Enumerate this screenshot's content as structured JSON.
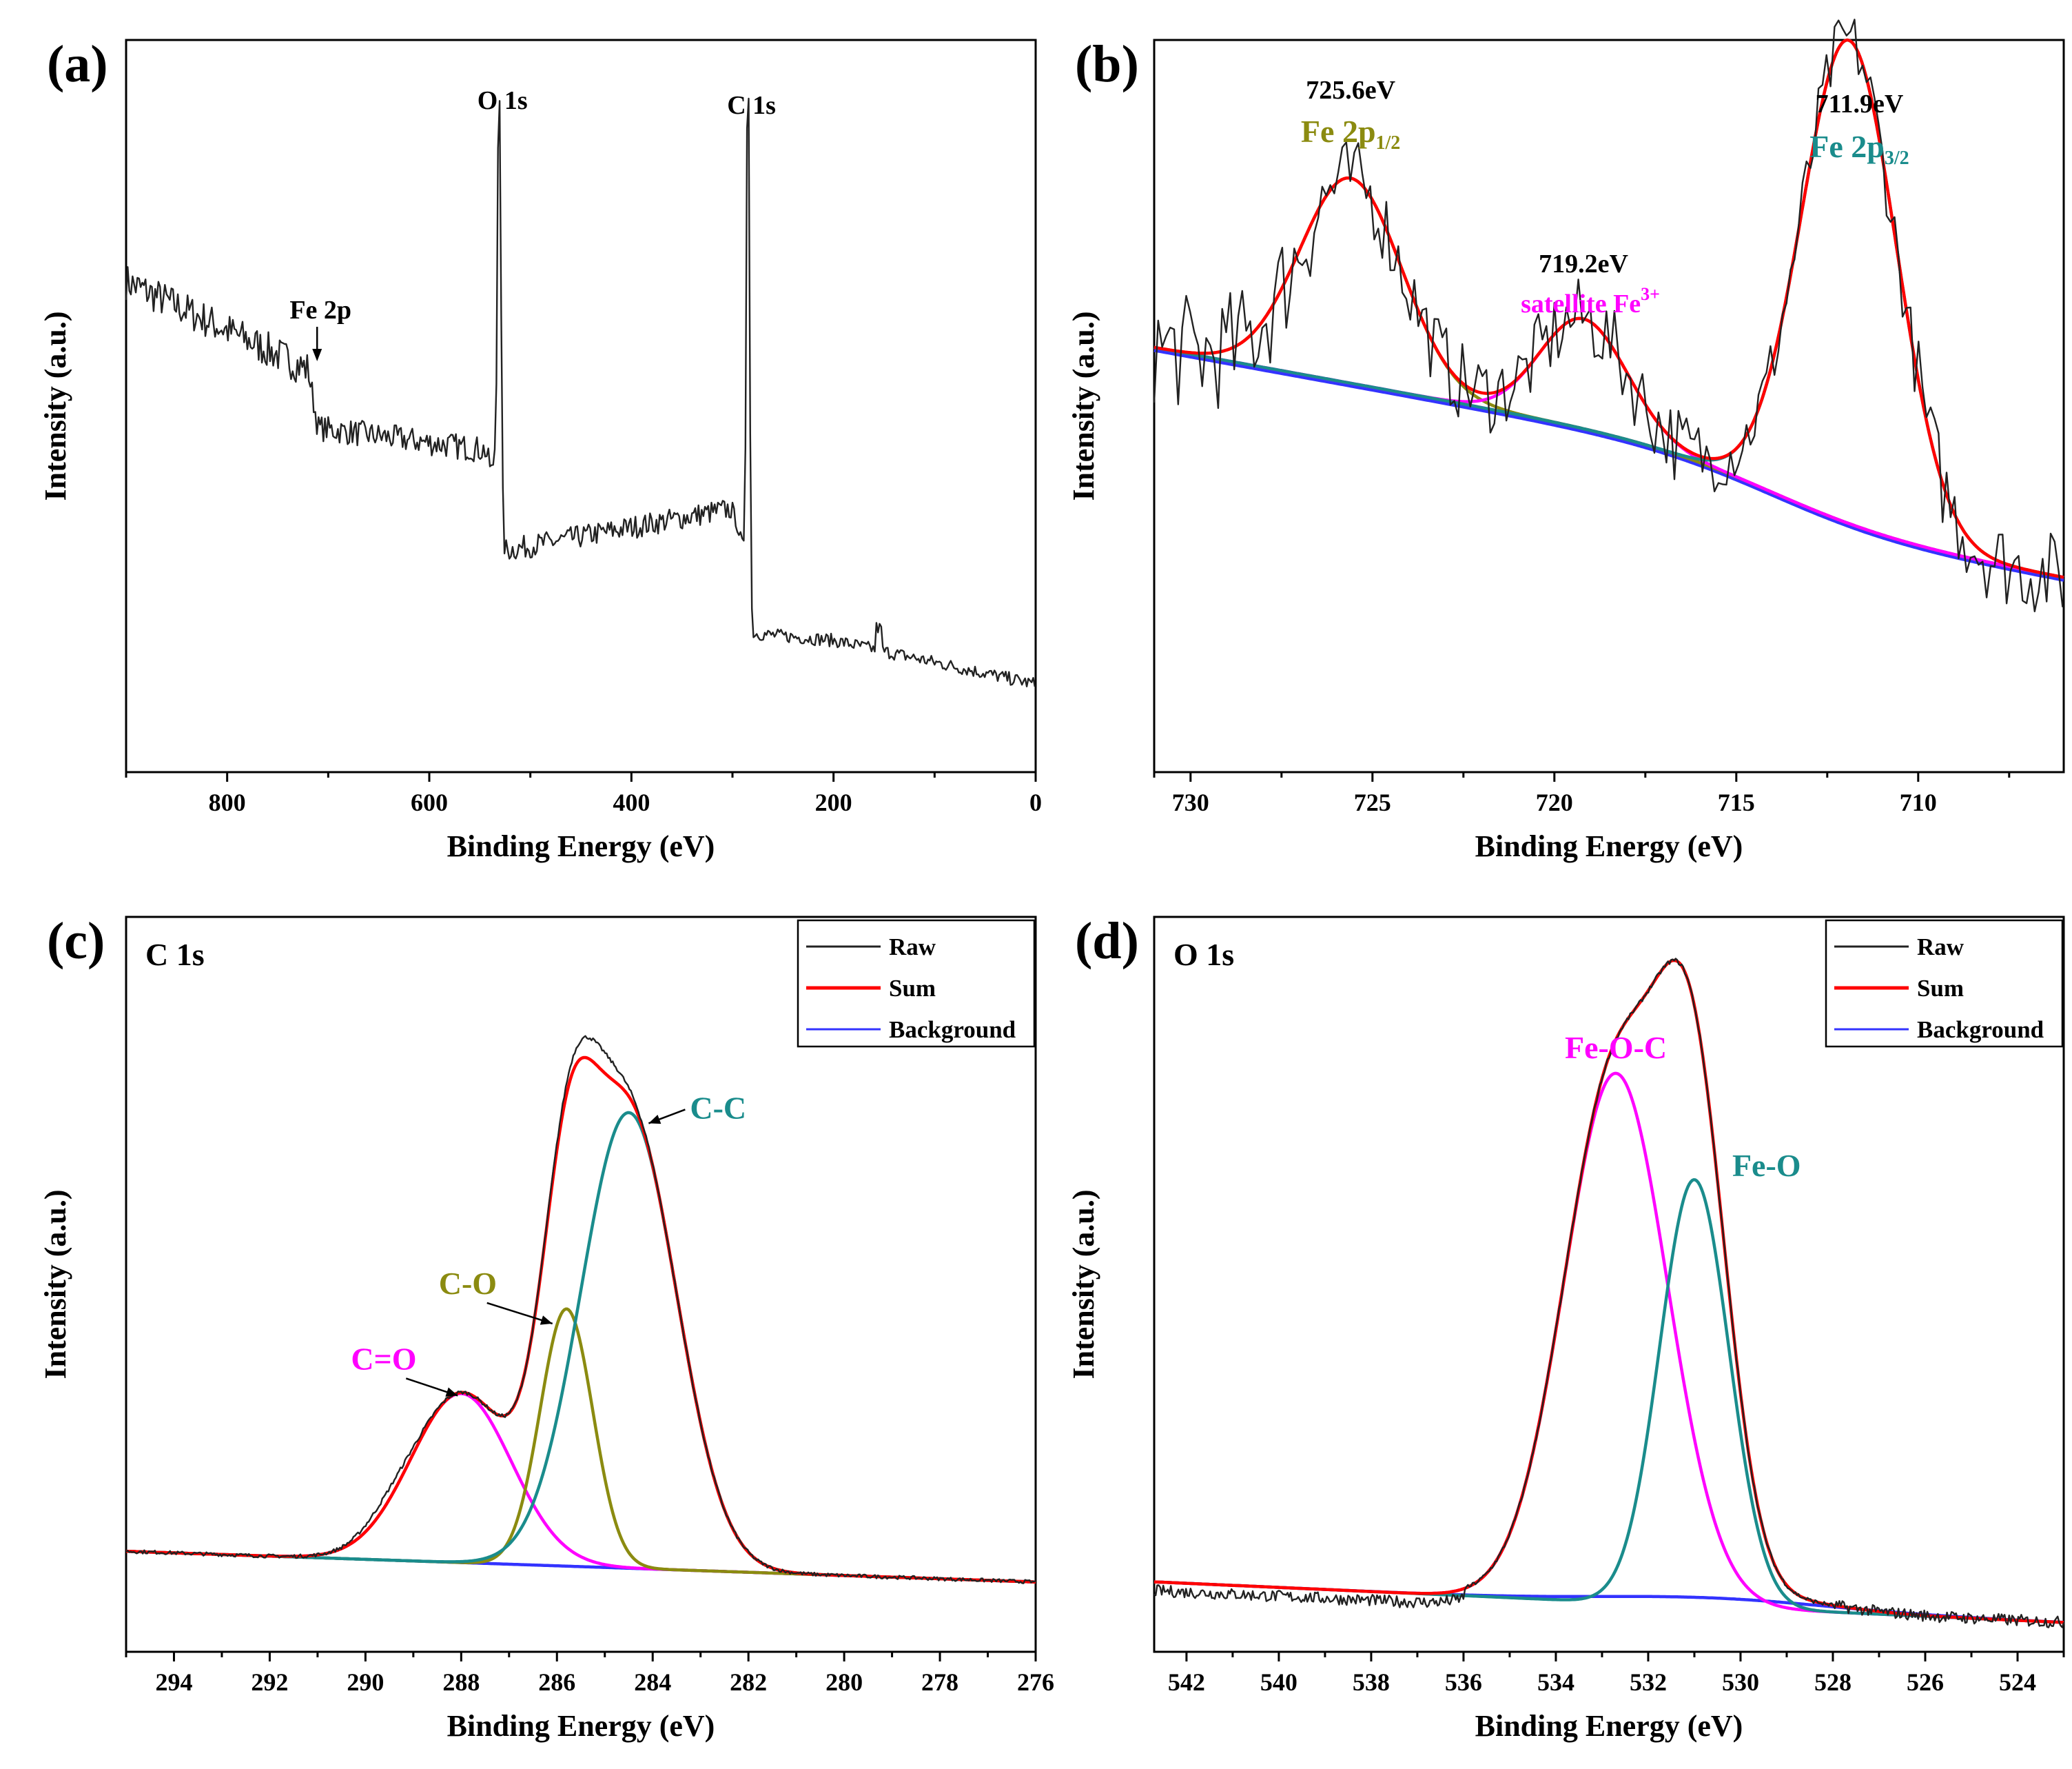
{
  "figure": "XPS spectra",
  "panels": [
    {
      "id": "a",
      "label": "(a)",
      "title": "",
      "xlabel": "Binding Energy (eV)",
      "ylabel": "Intensity (a.u.)",
      "xticks": [
        "800",
        "600",
        "400",
        "200",
        "0"
      ],
      "annotations": [
        {
          "text": "Fe 2p",
          "color": "#000000"
        },
        {
          "text": "O 1s",
          "color": "#000000"
        },
        {
          "text": "C 1s",
          "color": "#000000"
        }
      ]
    },
    {
      "id": "b",
      "label": "(b)",
      "title": "",
      "xlabel": "Binding Energy (eV)",
      "ylabel": "Intensity (a.u.)",
      "xticks": [
        "730",
        "725",
        "720",
        "715",
        "710"
      ],
      "annotations": [
        {
          "text": "725.6eV",
          "color": "#000000"
        },
        {
          "text": "Fe 2p",
          "sub": "1/2",
          "color": "#8b8b10"
        },
        {
          "text": "719.2eV",
          "color": "#000000"
        },
        {
          "text": "satellite Fe",
          "sup": "3+",
          "color": "#ff00ff"
        },
        {
          "text": "711.9eV",
          "color": "#000000"
        },
        {
          "text": "Fe 2p",
          "sub": "3/2",
          "color": "#1a8c8c"
        }
      ]
    },
    {
      "id": "c",
      "label": "(c)",
      "title": "C 1s",
      "xlabel": "Binding Energy (eV)",
      "ylabel": "Intensity (a.u.)",
      "xticks": [
        "294",
        "292",
        "290",
        "288",
        "286",
        "284",
        "282",
        "280",
        "278",
        "276"
      ],
      "annotations": [
        {
          "text": "C-C",
          "color": "#1a8c8c"
        },
        {
          "text": "C-O",
          "color": "#8b8b10"
        },
        {
          "text": "C=O",
          "color": "#ff00ff"
        }
      ],
      "legend": [
        "Raw",
        "Sum",
        "Background"
      ]
    },
    {
      "id": "d",
      "label": "(d)",
      "title": "O 1s",
      "xlabel": "Binding Energy (eV)",
      "ylabel": "Intensity (a.u.)",
      "xticks": [
        "542",
        "540",
        "538",
        "536",
        "534",
        "532",
        "530",
        "528",
        "526",
        "524"
      ],
      "annotations": [
        {
          "text": "Fe-O-C",
          "color": "#ff00ff"
        },
        {
          "text": "Fe-O",
          "color": "#1a8c8c"
        }
      ],
      "legend": [
        "Raw",
        "Sum",
        "Background"
      ]
    }
  ],
  "colors": {
    "raw": "#222222",
    "sum": "#ff0000",
    "background": "#3333ff",
    "cyan": "#1a8c8c",
    "olive": "#8b8b10",
    "magenta": "#ff00ff"
  },
  "chart_data": [
    {
      "panel": "a",
      "type": "line",
      "title": "",
      "xlabel": "Binding Energy (eV)",
      "ylabel": "Intensity (a.u.)",
      "xlim": [
        900,
        0
      ],
      "ylim": [
        0,
        100
      ],
      "reversed_x": true,
      "series": [
        {
          "name": "Raw",
          "x": [
            900,
            800,
            720,
            710,
            600,
            545,
            532,
            530,
            528,
            520,
            400,
            300,
            292,
            285,
            283,
            280,
            200,
            100,
            0
          ],
          "y": [
            67,
            60,
            55,
            47,
            45,
            44,
            40,
            97,
            33,
            30,
            32,
            36,
            31,
            95,
            19,
            18,
            18,
            17,
            12
          ]
        }
      ],
      "peaks": [
        {
          "label": "Fe 2p",
          "x": 711
        },
        {
          "label": "O 1s",
          "x": 531
        },
        {
          "label": "C 1s",
          "x": 284.6
        }
      ]
    },
    {
      "panel": "b",
      "type": "line",
      "title": "",
      "xlabel": "Binding Energy (eV)",
      "ylabel": "Intensity (a.u.)",
      "xlim": [
        731,
        706
      ],
      "ylim": [
        0,
        100
      ],
      "reversed_x": true,
      "series": [
        {
          "name": "Background",
          "color": "#ff00ff"
        },
        {
          "name": "Fe 2p1/2 component",
          "color": "#8b8b10",
          "center": 725.6,
          "height": 28,
          "sigma": 1.4
        },
        {
          "name": "Satellite Fe3+ component",
          "color": "#ff00ff",
          "center": 719.2,
          "height": 15,
          "sigma": 1.2
        },
        {
          "name": "Fe 2p3/2 component",
          "color": "#1a8c8c",
          "center": 711.9,
          "height": 66,
          "sigma": 1.3
        },
        {
          "name": "Sum",
          "color": "#ff0000"
        },
        {
          "name": "Raw",
          "color": "#222222"
        }
      ],
      "peaks": [
        {
          "label": "725.6eV",
          "x": 725.6
        },
        {
          "label": "719.2eV",
          "x": 719.2
        },
        {
          "label": "711.9eV",
          "x": 711.9
        }
      ]
    },
    {
      "panel": "c",
      "type": "line",
      "title": "C 1s",
      "xlabel": "Binding Energy (eV)",
      "ylabel": "Intensity (a.u.)",
      "xlim": [
        295,
        276
      ],
      "ylim": [
        0,
        100
      ],
      "reversed_x": true,
      "series": [
        {
          "name": "Background",
          "color": "#3333ff"
        },
        {
          "name": "C=O",
          "color": "#ff00ff",
          "center": 288.0,
          "height": 23,
          "sigma": 1.05
        },
        {
          "name": "C-O",
          "color": "#8b8b10",
          "center": 285.8,
          "height": 35,
          "sigma": 0.55
        },
        {
          "name": "C-C",
          "color": "#1a8c8c",
          "center": 284.5,
          "height": 62,
          "sigma": 1.0
        },
        {
          "name": "Sum",
          "color": "#ff0000"
        },
        {
          "name": "Raw",
          "color": "#222222"
        }
      ]
    },
    {
      "panel": "d",
      "type": "line",
      "title": "O 1s",
      "xlabel": "Binding Energy (eV)",
      "ylabel": "Intensity (a.u.)",
      "xlim": [
        542.7,
        523
      ],
      "ylim": [
        0,
        100
      ],
      "reversed_x": true,
      "series": [
        {
          "name": "Background",
          "color": "#3333ff"
        },
        {
          "name": "Fe-O-C",
          "color": "#ff00ff",
          "center": 532.7,
          "height": 72,
          "sigma": 1.12
        },
        {
          "name": "Fe-O",
          "color": "#1a8c8c",
          "center": 531.0,
          "height": 58,
          "sigma": 0.75
        },
        {
          "name": "Sum",
          "color": "#ff0000"
        },
        {
          "name": "Raw",
          "color": "#222222"
        }
      ]
    }
  ]
}
